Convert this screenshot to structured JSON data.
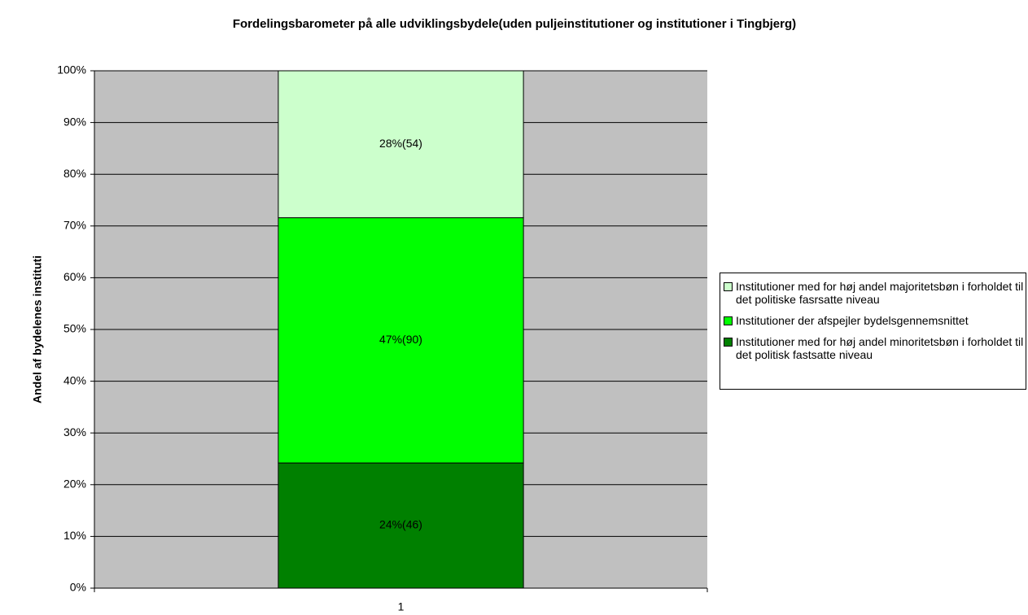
{
  "chart_data": {
    "type": "stacked_bar",
    "title": "Fordelingsbarometer på alle udviklingsbydele(uden puljeinstitutioner og institutioner i Tingbjerg)",
    "y_label": "Andel af bydelenes instituti",
    "categories": [
      "1"
    ],
    "series": [
      {
        "name": "Institutioner med for høj andel minoritetsbøn i forholdet til det politisk fastsatte niveau",
        "color": "#008000",
        "values": [
          24.2
        ],
        "value_labels": [
          "24%(46)"
        ]
      },
      {
        "name": "Institutioner der afspejler bydelsgennemsnittet",
        "color": "#00ff00",
        "values": [
          47.4
        ],
        "value_labels": [
          "47%(90)"
        ]
      },
      {
        "name": "Institutioner med for høj andel majoritetsbøn i forholdet til det politiske fasrsatte niveau",
        "color": "#ccffcc",
        "values": [
          28.4
        ],
        "value_labels": [
          "28%(54)"
        ]
      }
    ],
    "ylim": [
      0,
      100
    ],
    "yticks": [
      {
        "value": 0,
        "label": "0%"
      },
      {
        "value": 10,
        "label": "10%"
      },
      {
        "value": 20,
        "label": "20%"
      },
      {
        "value": 30,
        "label": "30%"
      },
      {
        "value": 40,
        "label": "40%"
      },
      {
        "value": 50,
        "label": "50%"
      },
      {
        "value": 60,
        "label": "60%"
      },
      {
        "value": 70,
        "label": "70%"
      },
      {
        "value": 80,
        "label": "80%"
      },
      {
        "value": 90,
        "label": "90%"
      },
      {
        "value": 100,
        "label": "100%"
      }
    ],
    "grid": true,
    "legend": "right",
    "plot_background": "#c0c0c0"
  }
}
